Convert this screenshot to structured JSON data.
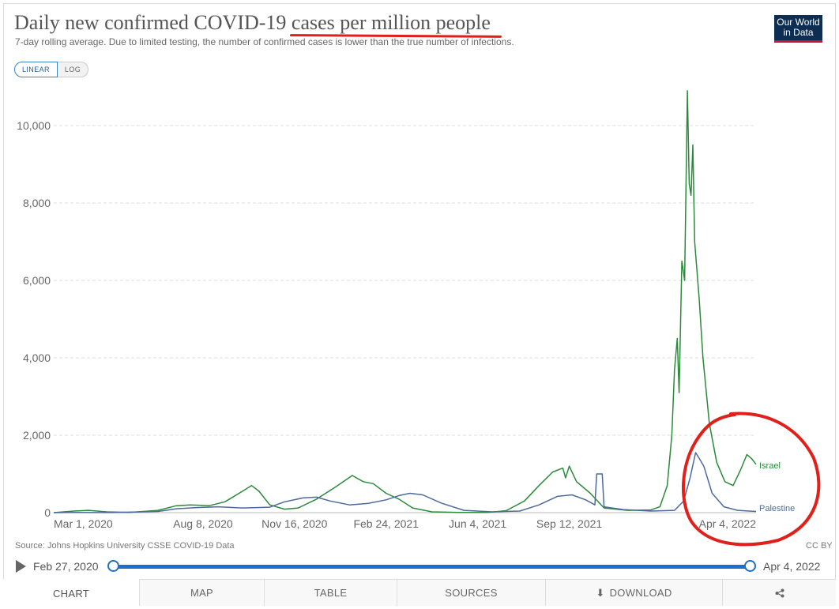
{
  "header": {
    "title_prefix": "Daily new confirmed COVID-19 ",
    "title_highlight": "cases per million people",
    "subtitle": "7-day rolling average. Due to limited testing, the number of confirmed cases is lower than the true number of infections.",
    "logo_line1": "Our World",
    "logo_line2": "in Data"
  },
  "scale_toggle": {
    "linear": "LINEAR",
    "log": "LOG",
    "selected": "LINEAR"
  },
  "annotation_color": "#e0201b",
  "chart_data": {
    "type": "line",
    "title": "Daily new confirmed COVID-19 cases per million people",
    "y_ticks": [
      0,
      2000,
      4000,
      6000,
      8000,
      10000
    ],
    "y_tick_labels": [
      "0",
      "2,000",
      "4,000",
      "6,000",
      "8,000",
      "10,000"
    ],
    "ylim": [
      0,
      11000
    ],
    "xlim": [
      "2020-02-27",
      "2022-04-04"
    ],
    "x_ticks": [
      "2020-03-01",
      "2020-08-08",
      "2020-11-16",
      "2021-02-24",
      "2021-06-04",
      "2021-09-12",
      "2022-04-04"
    ],
    "x_tick_labels": [
      "Mar 1, 2020",
      "Aug 8, 2020",
      "Nov 16, 2020",
      "Feb 24, 2021",
      "Jun 4, 2021",
      "Sep 12, 2021",
      "Apr 4, 2022"
    ],
    "grid": "horizontal dashed",
    "series": [
      {
        "name": "Israel",
        "color": "#2a8a3a",
        "points": [
          [
            "2020-02-27",
            0
          ],
          [
            "2020-03-20",
            40
          ],
          [
            "2020-04-05",
            60
          ],
          [
            "2020-04-25",
            20
          ],
          [
            "2020-05-20",
            5
          ],
          [
            "2020-06-20",
            60
          ],
          [
            "2020-07-10",
            180
          ],
          [
            "2020-07-25",
            200
          ],
          [
            "2020-08-15",
            180
          ],
          [
            "2020-09-01",
            280
          ],
          [
            "2020-09-20",
            550
          ],
          [
            "2020-09-30",
            700
          ],
          [
            "2020-10-08",
            560
          ],
          [
            "2020-10-20",
            200
          ],
          [
            "2020-11-05",
            90
          ],
          [
            "2020-11-20",
            120
          ],
          [
            "2020-12-10",
            350
          ],
          [
            "2020-12-30",
            650
          ],
          [
            "2021-01-18",
            960
          ],
          [
            "2021-01-30",
            800
          ],
          [
            "2021-02-10",
            750
          ],
          [
            "2021-02-24",
            500
          ],
          [
            "2021-03-10",
            350
          ],
          [
            "2021-03-25",
            120
          ],
          [
            "2021-04-15",
            20
          ],
          [
            "2021-05-15",
            5
          ],
          [
            "2021-06-15",
            5
          ],
          [
            "2021-07-05",
            50
          ],
          [
            "2021-07-25",
            300
          ],
          [
            "2021-08-10",
            700
          ],
          [
            "2021-08-25",
            1050
          ],
          [
            "2021-09-05",
            1150
          ],
          [
            "2021-09-08",
            900
          ],
          [
            "2021-09-12",
            1200
          ],
          [
            "2021-09-20",
            800
          ],
          [
            "2021-10-05",
            500
          ],
          [
            "2021-10-20",
            120
          ],
          [
            "2021-11-15",
            60
          ],
          [
            "2021-12-10",
            70
          ],
          [
            "2021-12-20",
            150
          ],
          [
            "2021-12-28",
            700
          ],
          [
            "2022-01-02",
            2000
          ],
          [
            "2022-01-05",
            3700
          ],
          [
            "2022-01-08",
            4500
          ],
          [
            "2022-01-10",
            3100
          ],
          [
            "2022-01-13",
            6500
          ],
          [
            "2022-01-16",
            6000
          ],
          [
            "2022-01-19",
            10900
          ],
          [
            "2022-01-21",
            8500
          ],
          [
            "2022-01-23",
            8200
          ],
          [
            "2022-01-25",
            9500
          ],
          [
            "2022-01-27",
            7000
          ],
          [
            "2022-02-01",
            5500
          ],
          [
            "2022-02-05",
            4000
          ],
          [
            "2022-02-12",
            2300
          ],
          [
            "2022-02-20",
            1300
          ],
          [
            "2022-03-01",
            800
          ],
          [
            "2022-03-10",
            700
          ],
          [
            "2022-03-18",
            1100
          ],
          [
            "2022-03-25",
            1500
          ],
          [
            "2022-03-30",
            1400
          ],
          [
            "2022-04-04",
            1250
          ]
        ]
      },
      {
        "name": "Palestine",
        "color": "#4c6a9c",
        "points": [
          [
            "2020-02-27",
            0
          ],
          [
            "2020-03-20",
            5
          ],
          [
            "2020-05-01",
            3
          ],
          [
            "2020-06-20",
            30
          ],
          [
            "2020-07-10",
            100
          ],
          [
            "2020-08-01",
            130
          ],
          [
            "2020-08-25",
            150
          ],
          [
            "2020-09-20",
            120
          ],
          [
            "2020-10-20",
            140
          ],
          [
            "2020-11-05",
            280
          ],
          [
            "2020-11-25",
            380
          ],
          [
            "2020-12-10",
            400
          ],
          [
            "2020-12-25",
            300
          ],
          [
            "2021-01-15",
            200
          ],
          [
            "2021-02-05",
            240
          ],
          [
            "2021-02-24",
            330
          ],
          [
            "2021-03-10",
            440
          ],
          [
            "2021-03-22",
            500
          ],
          [
            "2021-04-05",
            460
          ],
          [
            "2021-04-25",
            250
          ],
          [
            "2021-05-20",
            60
          ],
          [
            "2021-06-20",
            20
          ],
          [
            "2021-07-20",
            40
          ],
          [
            "2021-08-10",
            200
          ],
          [
            "2021-08-30",
            420
          ],
          [
            "2021-09-15",
            460
          ],
          [
            "2021-09-30",
            330
          ],
          [
            "2021-10-10",
            200
          ],
          [
            "2021-10-12",
            1000
          ],
          [
            "2021-10-18",
            1000
          ],
          [
            "2021-10-20",
            150
          ],
          [
            "2021-11-10",
            80
          ],
          [
            "2021-12-10",
            40
          ],
          [
            "2022-01-05",
            60
          ],
          [
            "2022-01-15",
            300
          ],
          [
            "2022-01-22",
            900
          ],
          [
            "2022-01-28",
            1550
          ],
          [
            "2022-02-01",
            1400
          ],
          [
            "2022-02-06",
            1200
          ],
          [
            "2022-02-15",
            500
          ],
          [
            "2022-02-28",
            150
          ],
          [
            "2022-03-15",
            60
          ],
          [
            "2022-04-04",
            30
          ]
        ]
      }
    ]
  },
  "source": "Source: Johns Hopkins University CSSE COVID-19 Data",
  "license": "CC BY",
  "timeline": {
    "start": "Feb 27, 2020",
    "end": "Apr 4, 2022"
  },
  "tabs": [
    {
      "label": "CHART"
    },
    {
      "label": "MAP"
    },
    {
      "label": "TABLE"
    },
    {
      "label": "SOURCES"
    },
    {
      "label": "DOWNLOAD"
    },
    {
      "label": ""
    }
  ]
}
